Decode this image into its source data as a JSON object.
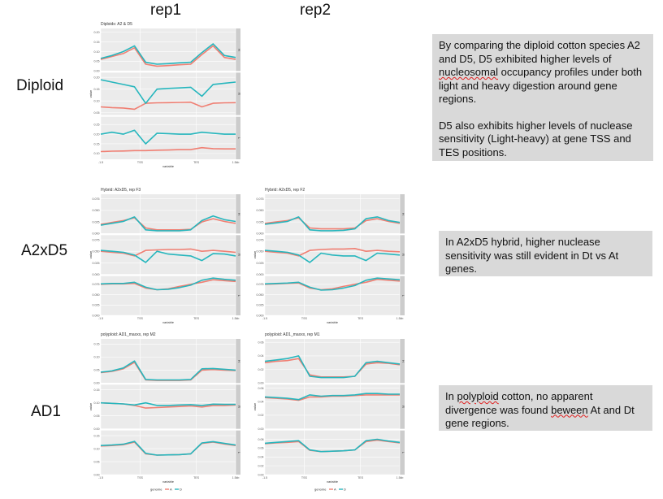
{
  "headers": {
    "col1": "rep1",
    "col2": "rep2"
  },
  "rows": {
    "diploid": "Diploid",
    "hybrid": "A2xD5",
    "polyploid": "AD1"
  },
  "notes": {
    "diploid": [
      "By comparing the diploid cotton species A2 and D5, D5 exhibited higher levels of nucleosomal occupancy profiles under both light and heavy digestion around gene regions.",
      "D5 also exhibits higher levels of nuclease sensitivity (Light-heavy) at gene TSS and TES positions."
    ],
    "hybrid": "In A2xD5 hybrid, higher nuclease sensitivity was still evident in Dt vs At genes.",
    "polyploid": "In polyploid cotton, no apparent divergence was found beween At and Dt gene regions."
  },
  "colors": {
    "A": "#f07f73",
    "D": "#26b6bd",
    "panel_bg": "#ebebeb",
    "strip_bg": "#cccccc",
    "grid": "#ffffff"
  },
  "chart_data": [
    {
      "type": "line",
      "title": "Diploids: A2 & D5",
      "xlabel": "variable",
      "ylabel": "value",
      "x_ticks": [
        "-1.5",
        "TSS",
        "TES",
        "1.5kb"
      ],
      "legend": {
        "title": "genome",
        "entries": [
          "A",
          "D"
        ],
        "placement": "bottom"
      },
      "panels": [
        {
          "strip": "H",
          "y_ticks": [
            "0.00",
            "0.05",
            "0.10",
            "0.15",
            "0.20"
          ],
          "ylim": [
            0,
            0.22
          ],
          "series": [
            {
              "name": "A",
              "values": [
                0.06,
                0.075,
                0.09,
                0.12,
                0.035,
                0.025,
                0.028,
                0.032,
                0.035,
                0.085,
                0.13,
                0.07,
                0.06
              ]
            },
            {
              "name": "D",
              "values": [
                0.065,
                0.08,
                0.1,
                0.13,
                0.045,
                0.035,
                0.038,
                0.042,
                0.045,
                0.095,
                0.14,
                0.08,
                0.07
              ]
            }
          ]
        },
        {
          "strip": "R",
          "y_ticks": [
            "0.05",
            "0.10",
            "0.15",
            "0.20"
          ],
          "ylim": [
            0.04,
            0.22
          ],
          "series": [
            {
              "name": "A",
              "values": [
                0.075,
                0.072,
                0.07,
                0.065,
                0.09,
                0.092,
                0.093,
                0.094,
                0.095,
                0.075,
                0.09,
                0.092,
                0.093
              ]
            },
            {
              "name": "D",
              "values": [
                0.19,
                0.18,
                0.17,
                0.16,
                0.09,
                0.15,
                0.153,
                0.155,
                0.158,
                0.12,
                0.17,
                0.175,
                0.18
              ]
            }
          ]
        },
        {
          "strip": "L",
          "y_ticks": [
            "0.10",
            "0.15",
            "0.20",
            "0.25"
          ],
          "ylim": [
            0.07,
            0.29
          ],
          "series": [
            {
              "name": "A",
              "values": [
                0.11,
                0.112,
                0.113,
                0.115,
                0.115,
                0.117,
                0.118,
                0.12,
                0.12,
                0.13,
                0.125,
                0.124,
                0.124
              ]
            },
            {
              "name": "D",
              "values": [
                0.2,
                0.21,
                0.2,
                0.22,
                0.15,
                0.205,
                0.203,
                0.2,
                0.2,
                0.21,
                0.205,
                0.2,
                0.2
              ]
            }
          ]
        }
      ]
    },
    {
      "type": "line",
      "title": "Hybrid: A2xD5, rep F3",
      "xlabel": "variable",
      "ylabel": "value",
      "x_ticks": [
        "-1.5",
        "TSS",
        "TES",
        "1.5kb"
      ],
      "legend": {
        "title": "genome",
        "entries": [
          "A",
          "D"
        ],
        "placement": "bottom"
      },
      "panels": [
        {
          "strip": "H",
          "y_ticks": [
            "0.000",
            "0.025",
            "0.050",
            "0.075"
          ],
          "ylim": [
            0,
            0.085
          ],
          "series": [
            {
              "name": "A",
              "values": [
                0.02,
                0.024,
                0.028,
                0.034,
                0.012,
                0.008,
                0.008,
                0.008,
                0.009,
                0.025,
                0.032,
                0.026,
                0.022
              ]
            },
            {
              "name": "D",
              "values": [
                0.018,
                0.022,
                0.026,
                0.036,
                0.008,
                0.006,
                0.006,
                0.006,
                0.008,
                0.028,
                0.038,
                0.03,
                0.026
              ]
            }
          ]
        },
        {
          "strip": "R",
          "y_ticks": [
            "0.000",
            "0.025",
            "0.050",
            "0.075"
          ],
          "ylim": [
            0,
            0.085
          ],
          "series": [
            {
              "name": "A",
              "values": [
                0.05,
                0.048,
                0.046,
                0.04,
                0.052,
                0.053,
                0.054,
                0.054,
                0.055,
                0.05,
                0.052,
                0.05,
                0.048
              ]
            },
            {
              "name": "D",
              "values": [
                0.052,
                0.05,
                0.048,
                0.042,
                0.026,
                0.05,
                0.044,
                0.042,
                0.04,
                0.03,
                0.045,
                0.044,
                0.04
              ]
            }
          ]
        },
        {
          "strip": "L",
          "y_ticks": [
            "0.000",
            "0.025",
            "0.050",
            "0.075"
          ],
          "ylim": [
            0,
            0.095
          ],
          "series": [
            {
              "name": "A",
              "values": [
                0.075,
                0.076,
                0.076,
                0.077,
                0.066,
                0.062,
                0.064,
                0.07,
                0.075,
                0.08,
                0.086,
                0.084,
                0.082
              ]
            },
            {
              "name": "D",
              "values": [
                0.076,
                0.077,
                0.077,
                0.08,
                0.068,
                0.062,
                0.063,
                0.067,
                0.073,
                0.085,
                0.09,
                0.087,
                0.085
              ]
            }
          ]
        }
      ]
    },
    {
      "type": "line",
      "title": "Hybrid: A2xD5, rep F2",
      "xlabel": "variable",
      "ylabel": "value",
      "x_ticks": [
        "-1.5",
        "TSS",
        "TES",
        "1.5kb"
      ],
      "legend": {
        "title": "genome",
        "entries": [
          "A",
          "D"
        ],
        "placement": "bottom"
      },
      "panels": [
        {
          "strip": "H",
          "y_ticks": [
            "0.000",
            "0.025",
            "0.050",
            "0.075"
          ],
          "ylim": [
            0,
            0.085
          ],
          "series": [
            {
              "name": "A",
              "values": [
                0.022,
                0.025,
                0.028,
                0.034,
                0.012,
                0.01,
                0.01,
                0.01,
                0.012,
                0.028,
                0.032,
                0.026,
                0.022
              ]
            },
            {
              "name": "D",
              "values": [
                0.02,
                0.023,
                0.026,
                0.036,
                0.008,
                0.006,
                0.006,
                0.007,
                0.01,
                0.032,
                0.036,
                0.028,
                0.024
              ]
            }
          ]
        },
        {
          "strip": "R",
          "y_ticks": [
            "0.000",
            "0.025",
            "0.050",
            "0.075"
          ],
          "ylim": [
            0,
            0.085
          ],
          "series": [
            {
              "name": "A",
              "values": [
                0.05,
                0.048,
                0.046,
                0.04,
                0.052,
                0.054,
                0.055,
                0.055,
                0.056,
                0.05,
                0.052,
                0.05,
                0.049
              ]
            },
            {
              "name": "D",
              "values": [
                0.052,
                0.05,
                0.048,
                0.042,
                0.026,
                0.046,
                0.042,
                0.04,
                0.04,
                0.03,
                0.046,
                0.044,
                0.042
              ]
            }
          ]
        },
        {
          "strip": "L",
          "y_ticks": [
            "0.000",
            "0.025",
            "0.050",
            "0.075"
          ],
          "ylim": [
            0,
            0.095
          ],
          "series": [
            {
              "name": "A",
              "values": [
                0.075,
                0.076,
                0.077,
                0.078,
                0.066,
                0.062,
                0.064,
                0.07,
                0.075,
                0.08,
                0.087,
                0.085,
                0.083
              ]
            },
            {
              "name": "D",
              "values": [
                0.076,
                0.077,
                0.078,
                0.08,
                0.068,
                0.061,
                0.062,
                0.066,
                0.072,
                0.085,
                0.09,
                0.088,
                0.086
              ]
            }
          ]
        }
      ]
    },
    {
      "type": "line",
      "title": "polyploid: AD1_maxxx, rep M2",
      "xlabel": "variable",
      "ylabel": "value",
      "x_ticks": [
        "-1.5",
        "TSS",
        "TES",
        "1.5kb"
      ],
      "legend": {
        "title": "genome",
        "entries": [
          "A",
          "D"
        ],
        "placement": "bottom"
      },
      "panels": [
        {
          "strip": "H",
          "y_ticks": [
            "0.00",
            "0.05",
            "0.10",
            "0.15"
          ],
          "ylim": [
            0,
            0.17
          ],
          "series": [
            {
              "name": "A",
              "values": [
                0.04,
                0.045,
                0.055,
                0.08,
                0.012,
                0.01,
                0.01,
                0.01,
                0.012,
                0.05,
                0.052,
                0.05,
                0.048
              ]
            },
            {
              "name": "D",
              "values": [
                0.042,
                0.047,
                0.058,
                0.085,
                0.014,
                0.012,
                0.012,
                0.012,
                0.014,
                0.055,
                0.056,
                0.053,
                0.05
              ]
            }
          ]
        },
        {
          "strip": "R",
          "y_ticks": [
            "0.00",
            "0.05",
            "0.10",
            "0.15"
          ],
          "ylim": [
            0,
            0.17
          ],
          "series": [
            {
              "name": "A",
              "values": [
                0.1,
                0.098,
                0.096,
                0.09,
                0.08,
                0.082,
                0.084,
                0.086,
                0.088,
                0.084,
                0.09,
                0.09,
                0.092
              ]
            },
            {
              "name": "D",
              "values": [
                0.1,
                0.098,
                0.096,
                0.092,
                0.1,
                0.09,
                0.09,
                0.092,
                0.093,
                0.09,
                0.095,
                0.094,
                0.094
              ]
            }
          ]
        },
        {
          "strip": "L",
          "y_ticks": [
            "0.00",
            "0.05",
            "0.10",
            "0.15"
          ],
          "ylim": [
            0,
            0.17
          ],
          "series": [
            {
              "name": "A",
              "values": [
                0.11,
                0.112,
                0.115,
                0.125,
                0.08,
                0.075,
                0.076,
                0.077,
                0.08,
                0.12,
                0.125,
                0.118,
                0.112
              ]
            },
            {
              "name": "D",
              "values": [
                0.112,
                0.114,
                0.117,
                0.128,
                0.082,
                0.075,
                0.076,
                0.077,
                0.08,
                0.122,
                0.127,
                0.12,
                0.114
              ]
            }
          ]
        }
      ]
    },
    {
      "type": "line",
      "title": "polyploid: AD1_maxxx, rep M1",
      "xlabel": "variable",
      "ylabel": "value",
      "x_ticks": [
        "-1.5",
        "TSS",
        "TES",
        "1.5kb"
      ],
      "legend": {
        "title": "genome",
        "entries": [
          "A",
          "D"
        ],
        "placement": "bottom"
      },
      "panels": [
        {
          "strip": "H",
          "y_ticks": [
            "0.00",
            "0.02",
            "0.04",
            "0.06"
          ],
          "ylim": [
            0,
            0.065
          ],
          "series": [
            {
              "name": "A",
              "values": [
                0.03,
                0.032,
                0.033,
                0.036,
                0.012,
                0.009,
                0.009,
                0.009,
                0.01,
                0.028,
                0.03,
                0.029,
                0.027
              ]
            },
            {
              "name": "D",
              "values": [
                0.032,
                0.034,
                0.036,
                0.04,
                0.01,
                0.008,
                0.008,
                0.008,
                0.01,
                0.03,
                0.032,
                0.03,
                0.028
              ]
            }
          ]
        },
        {
          "strip": "R",
          "y_ticks": [
            "0.00",
            "0.02",
            "0.04",
            "0.06"
          ],
          "ylim": [
            0,
            0.065
          ],
          "series": [
            {
              "name": "A",
              "values": [
                0.046,
                0.045,
                0.044,
                0.042,
                0.047,
                0.047,
                0.048,
                0.048,
                0.049,
                0.05,
                0.05,
                0.05,
                0.05
              ]
            },
            {
              "name": "D",
              "values": [
                0.047,
                0.046,
                0.045,
                0.043,
                0.05,
                0.048,
                0.049,
                0.049,
                0.05,
                0.052,
                0.052,
                0.051,
                0.051
              ]
            }
          ]
        },
        {
          "strip": "L",
          "y_ticks": [
            "0.00",
            "0.02",
            "0.04",
            "0.06",
            "0.08"
          ],
          "ylim": [
            0,
            0.1
          ],
          "series": [
            {
              "name": "A",
              "values": [
                0.07,
                0.072,
                0.073,
                0.075,
                0.055,
                0.052,
                0.053,
                0.054,
                0.056,
                0.075,
                0.078,
                0.075,
                0.072
              ]
            },
            {
              "name": "D",
              "values": [
                0.071,
                0.073,
                0.075,
                0.077,
                0.056,
                0.052,
                0.053,
                0.054,
                0.056,
                0.077,
                0.08,
                0.076,
                0.073
              ]
            }
          ]
        }
      ]
    }
  ]
}
